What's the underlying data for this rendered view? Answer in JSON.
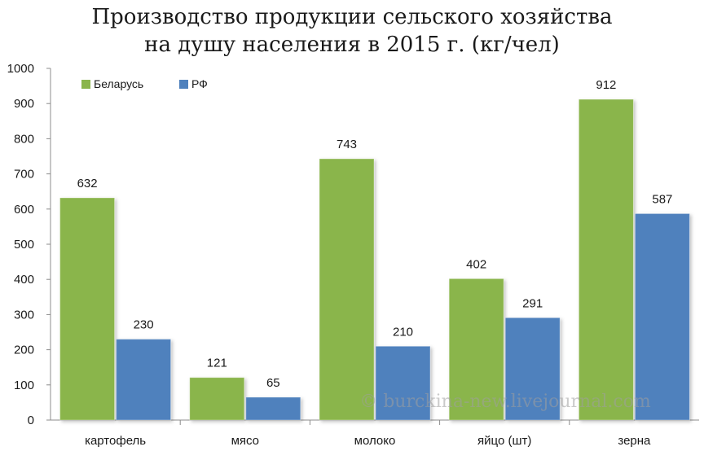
{
  "chart_data": {
    "type": "bar",
    "title_line1": "Производство продукции сельского хозяйства",
    "title_line2": "на душу населения в 2015 г. (кг/чел)",
    "categories": [
      "картофель",
      "мясо",
      "молоко",
      "яйцо (шт)",
      "зерна"
    ],
    "series": [
      {
        "name": "Беларусь",
        "color": "#8ab54b",
        "values": [
          632,
          121,
          743,
          402,
          912
        ]
      },
      {
        "name": "РФ",
        "color": "#4f81bd",
        "values": [
          230,
          65,
          210,
          291,
          587
        ]
      }
    ],
    "ylim": [
      0,
      1000
    ],
    "yticks": [
      0,
      100,
      200,
      300,
      400,
      500,
      600,
      700,
      800,
      900,
      1000
    ],
    "grid": false,
    "legend_position": "top-left"
  },
  "watermark": "© burckina-new.livejournal.com"
}
